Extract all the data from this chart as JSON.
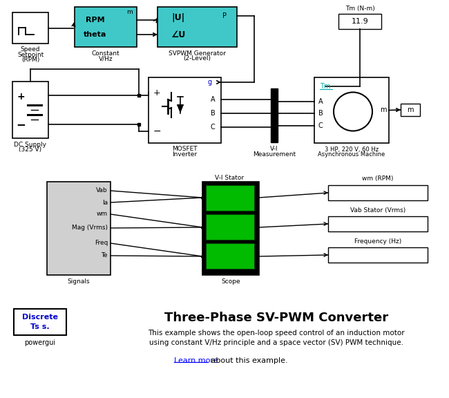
{
  "title": "Three-Phase SV-PWM Converter",
  "description_line1": "This example shows the open-loop speed control of an induction motor",
  "description_line2": "using constant V/Hz principle and a space vector (SV) PWM technique.",
  "learn_more_text": "Learn more",
  "learn_more_suffix": " about this example.",
  "powergui_label": "powergui",
  "discrete_line1": "Discrete",
  "discrete_line2": "Ts s.",
  "white": "#ffffff",
  "cyan_block": "#40c8c8",
  "green_scope": "#00bb00",
  "gray_signals": "#d0d0d0",
  "black": "#000000",
  "blue_text": "#0000cc",
  "link_color": "#0000ff",
  "teal_label": "#00aaaa"
}
